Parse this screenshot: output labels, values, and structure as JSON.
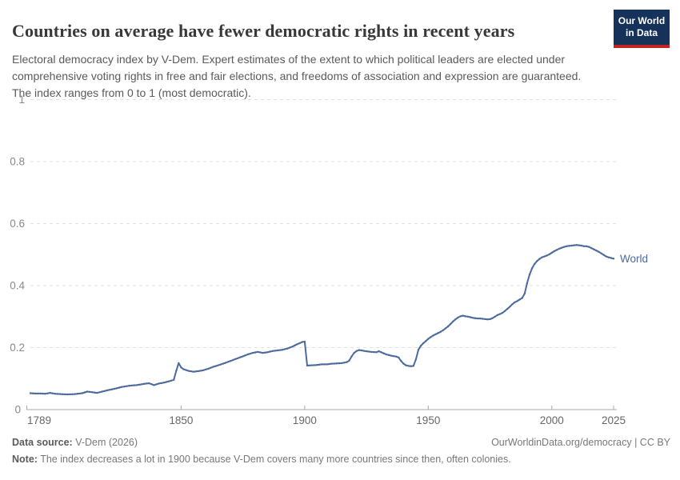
{
  "header": {
    "title": "Countries on average have fewer democratic rights in recent years",
    "subtitle": "Electoral democracy index by V-Dem. Expert estimates of the extent to which political leaders are elected under comprehensive voting rights in free and fair elections, and freedoms of association and expression are guaranteed. The index ranges from 0 to 1 (most democratic)."
  },
  "logo": {
    "line1": "Our World",
    "line2": "in Data",
    "bg_color": "#16325a",
    "stripe_color": "#c32423"
  },
  "footer": {
    "data_source_label": "Data source:",
    "data_source": " V-Dem (2026)",
    "link": "OurWorldinData.org/democracy | CC BY",
    "note_label": "Note:",
    "note": " The index decreases a lot in 1900 because V-Dem covers many more countries since then, often colonies."
  },
  "chart_data": {
    "type": "line",
    "title": "Countries on average have fewer democratic rights in recent years",
    "xlabel": "",
    "ylabel": "Electoral democracy index",
    "xlim": [
      1789,
      2025
    ],
    "ylim": [
      0,
      1
    ],
    "xticks": [
      1789,
      1850,
      1900,
      1950,
      2000,
      2025
    ],
    "yticks": [
      0,
      0.2,
      0.4,
      0.6,
      0.8,
      1
    ],
    "grid": "horizontal-dashed",
    "legend": "end-of-line-label",
    "colors": {
      "line": "#4C6A9C",
      "grid": "#e2e2e2",
      "axis": "#a8a8a8",
      "ytick_text": "#8a8a8a",
      "xtick_text": "#676767"
    },
    "series": [
      {
        "name": "World",
        "color": "#4C6A9C",
        "points": [
          [
            1789,
            0.053
          ],
          [
            1791,
            0.052
          ],
          [
            1793,
            0.052
          ],
          [
            1795,
            0.051
          ],
          [
            1797,
            0.054
          ],
          [
            1799,
            0.051
          ],
          [
            1801,
            0.05
          ],
          [
            1804,
            0.049
          ],
          [
            1807,
            0.05
          ],
          [
            1810,
            0.053
          ],
          [
            1812,
            0.058
          ],
          [
            1814,
            0.056
          ],
          [
            1816,
            0.054
          ],
          [
            1818,
            0.058
          ],
          [
            1820,
            0.062
          ],
          [
            1823,
            0.067
          ],
          [
            1826,
            0.073
          ],
          [
            1829,
            0.077
          ],
          [
            1832,
            0.079
          ],
          [
            1835,
            0.083
          ],
          [
            1837,
            0.085
          ],
          [
            1839,
            0.079
          ],
          [
            1841,
            0.084
          ],
          [
            1843,
            0.087
          ],
          [
            1845,
            0.091
          ],
          [
            1847,
            0.096
          ],
          [
            1848,
            0.125
          ],
          [
            1849,
            0.15
          ],
          [
            1850,
            0.136
          ],
          [
            1851,
            0.13
          ],
          [
            1853,
            0.125
          ],
          [
            1855,
            0.122
          ],
          [
            1857,
            0.124
          ],
          [
            1859,
            0.127
          ],
          [
            1861,
            0.132
          ],
          [
            1863,
            0.138
          ],
          [
            1865,
            0.143
          ],
          [
            1867,
            0.148
          ],
          [
            1869,
            0.154
          ],
          [
            1871,
            0.16
          ],
          [
            1873,
            0.166
          ],
          [
            1875,
            0.172
          ],
          [
            1877,
            0.178
          ],
          [
            1879,
            0.183
          ],
          [
            1881,
            0.186
          ],
          [
            1883,
            0.183
          ],
          [
            1885,
            0.185
          ],
          [
            1887,
            0.189
          ],
          [
            1889,
            0.191
          ],
          [
            1891,
            0.193
          ],
          [
            1893,
            0.197
          ],
          [
            1895,
            0.203
          ],
          [
            1897,
            0.211
          ],
          [
            1899,
            0.218
          ],
          [
            1900,
            0.219
          ],
          [
            1901,
            0.142
          ],
          [
            1903,
            0.143
          ],
          [
            1905,
            0.144
          ],
          [
            1907,
            0.146
          ],
          [
            1909,
            0.146
          ],
          [
            1911,
            0.148
          ],
          [
            1913,
            0.149
          ],
          [
            1915,
            0.15
          ],
          [
            1917,
            0.153
          ],
          [
            1918,
            0.158
          ],
          [
            1919,
            0.172
          ],
          [
            1920,
            0.183
          ],
          [
            1921,
            0.189
          ],
          [
            1922,
            0.192
          ],
          [
            1923,
            0.191
          ],
          [
            1925,
            0.188
          ],
          [
            1927,
            0.186
          ],
          [
            1929,
            0.185
          ],
          [
            1930,
            0.188
          ],
          [
            1931,
            0.185
          ],
          [
            1933,
            0.178
          ],
          [
            1935,
            0.174
          ],
          [
            1937,
            0.171
          ],
          [
            1938,
            0.168
          ],
          [
            1939,
            0.157
          ],
          [
            1940,
            0.148
          ],
          [
            1941,
            0.143
          ],
          [
            1942,
            0.141
          ],
          [
            1943,
            0.14
          ],
          [
            1944,
            0.141
          ],
          [
            1945,
            0.162
          ],
          [
            1946,
            0.193
          ],
          [
            1947,
            0.206
          ],
          [
            1948,
            0.214
          ],
          [
            1949,
            0.221
          ],
          [
            1950,
            0.228
          ],
          [
            1951,
            0.234
          ],
          [
            1952,
            0.239
          ],
          [
            1953,
            0.243
          ],
          [
            1954,
            0.247
          ],
          [
            1955,
            0.251
          ],
          [
            1956,
            0.256
          ],
          [
            1957,
            0.262
          ],
          [
            1958,
            0.268
          ],
          [
            1959,
            0.276
          ],
          [
            1960,
            0.284
          ],
          [
            1961,
            0.291
          ],
          [
            1962,
            0.297
          ],
          [
            1963,
            0.301
          ],
          [
            1964,
            0.303
          ],
          [
            1965,
            0.301
          ],
          [
            1966,
            0.3
          ],
          [
            1967,
            0.298
          ],
          [
            1968,
            0.296
          ],
          [
            1969,
            0.295
          ],
          [
            1970,
            0.294
          ],
          [
            1971,
            0.294
          ],
          [
            1972,
            0.293
          ],
          [
            1973,
            0.292
          ],
          [
            1974,
            0.291
          ],
          [
            1975,
            0.292
          ],
          [
            1976,
            0.295
          ],
          [
            1977,
            0.3
          ],
          [
            1978,
            0.305
          ],
          [
            1979,
            0.308
          ],
          [
            1980,
            0.312
          ],
          [
            1981,
            0.318
          ],
          [
            1982,
            0.325
          ],
          [
            1983,
            0.332
          ],
          [
            1984,
            0.34
          ],
          [
            1985,
            0.346
          ],
          [
            1986,
            0.35
          ],
          [
            1987,
            0.355
          ],
          [
            1988,
            0.36
          ],
          [
            1989,
            0.374
          ],
          [
            1990,
            0.408
          ],
          [
            1991,
            0.436
          ],
          [
            1992,
            0.456
          ],
          [
            1993,
            0.47
          ],
          [
            1994,
            0.479
          ],
          [
            1995,
            0.486
          ],
          [
            1996,
            0.491
          ],
          [
            1997,
            0.494
          ],
          [
            1998,
            0.497
          ],
          [
            1999,
            0.501
          ],
          [
            2000,
            0.506
          ],
          [
            2001,
            0.511
          ],
          [
            2002,
            0.515
          ],
          [
            2003,
            0.519
          ],
          [
            2004,
            0.522
          ],
          [
            2005,
            0.525
          ],
          [
            2006,
            0.527
          ],
          [
            2007,
            0.528
          ],
          [
            2008,
            0.529
          ],
          [
            2009,
            0.53
          ],
          [
            2010,
            0.531
          ],
          [
            2011,
            0.53
          ],
          [
            2012,
            0.529
          ],
          [
            2013,
            0.527
          ],
          [
            2014,
            0.527
          ],
          [
            2015,
            0.525
          ],
          [
            2016,
            0.521
          ],
          [
            2017,
            0.517
          ],
          [
            2018,
            0.513
          ],
          [
            2019,
            0.509
          ],
          [
            2020,
            0.504
          ],
          [
            2021,
            0.499
          ],
          [
            2022,
            0.494
          ],
          [
            2023,
            0.491
          ],
          [
            2024,
            0.489
          ],
          [
            2025,
            0.487
          ]
        ]
      }
    ]
  }
}
